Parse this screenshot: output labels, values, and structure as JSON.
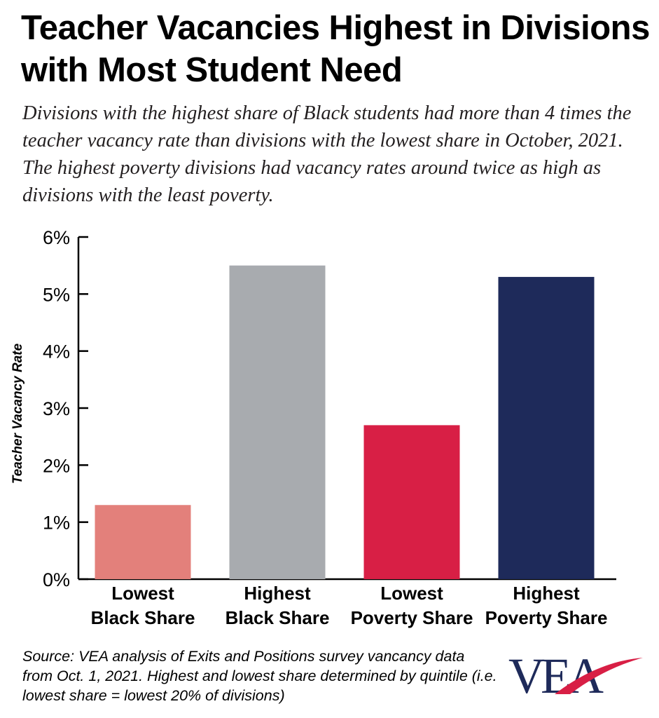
{
  "title": "Teacher Vacancies Highest in Divisions with Most Student Need",
  "subtitle": "Divisions with the highest share of Black students had more than 4 times the teacher vacancy rate than divisions with the lowest share in October, 2021. The highest poverty divisions had vacancy rates around twice as high as divisions with the least poverty.",
  "source": "Source: VEA analysis of Exits and Positions survey vancancy data from Oct. 1, 2021. Highest and lowest share determined by quintile (i.e. lowest share = lowest 20% of divisions)",
  "logo": {
    "text": "VEA",
    "colors": {
      "letters": "#1e2a5a",
      "swoosh": "#d81f45"
    }
  },
  "chart_data": {
    "type": "bar",
    "title": "",
    "ylabel": "Teacher Vacancy Rate",
    "xlabel": "",
    "ylim": [
      0,
      6
    ],
    "yticks": [
      "0%",
      "1%",
      "2%",
      "3%",
      "4%",
      "5%",
      "6%"
    ],
    "grid": false,
    "categories": [
      [
        "Lowest",
        "Black Share"
      ],
      [
        "Highest",
        "Black Share"
      ],
      [
        "Lowest",
        "Poverty Share"
      ],
      [
        "Highest",
        "Poverty Share"
      ]
    ],
    "values": [
      1.3,
      5.5,
      2.7,
      5.3
    ],
    "colors": [
      "#e3807b",
      "#a8abaf",
      "#d81f45",
      "#1e2a5a"
    ]
  }
}
